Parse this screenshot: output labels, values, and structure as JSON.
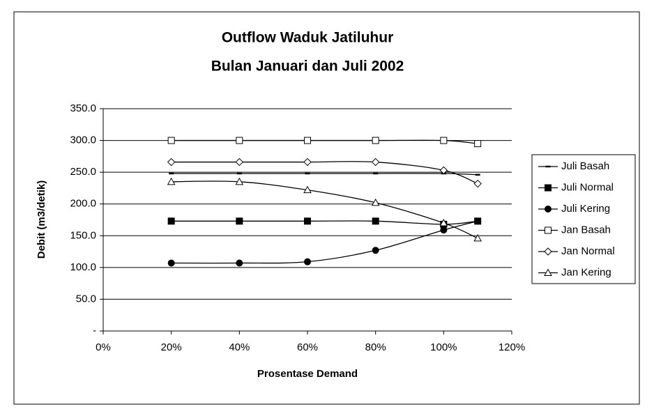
{
  "chart_data": {
    "type": "line",
    "title": "Outflow Waduk Jatiluhur",
    "subtitle": "Bulan Januari dan Juli 2002",
    "x_label": "Prosentase Demand",
    "y_label": "Debit (m3/detik)",
    "x": [
      20,
      40,
      60,
      80,
      100,
      110
    ],
    "xlim": [
      0,
      120
    ],
    "xticks": [
      {
        "value": 0,
        "label": "0%"
      },
      {
        "value": 20,
        "label": "20%"
      },
      {
        "value": 40,
        "label": "40%"
      },
      {
        "value": 60,
        "label": "60%"
      },
      {
        "value": 80,
        "label": "80%"
      },
      {
        "value": 100,
        "label": "100%"
      },
      {
        "value": 120,
        "label": "120%"
      }
    ],
    "ylim": [
      0,
      350
    ],
    "yticks": [
      {
        "value": 0,
        "label": "-"
      },
      {
        "value": 50,
        "label": "50.0"
      },
      {
        "value": 100,
        "label": "100.0"
      },
      {
        "value": 150,
        "label": "150.0"
      },
      {
        "value": 200,
        "label": "200.0"
      },
      {
        "value": 250,
        "label": "250.0"
      },
      {
        "value": 300,
        "label": "300.0"
      },
      {
        "value": 350,
        "label": "350.0"
      }
    ],
    "grid": true,
    "legend": "right",
    "series": [
      {
        "name": "Juli Basah",
        "color": "#000000",
        "marker": "dash",
        "values": [
          248,
          248,
          248,
          248,
          248,
          246
        ]
      },
      {
        "name": "Juli Normal",
        "color": "#000000",
        "marker": "square",
        "values": [
          173,
          173,
          173,
          173,
          168,
          173
        ]
      },
      {
        "name": "Juli Kering",
        "color": "#000000",
        "marker": "circle",
        "values": [
          107,
          107,
          109,
          127,
          159,
          173
        ]
      },
      {
        "name": "Jan Basah",
        "color": "#000000",
        "marker": "open-square",
        "values": [
          300,
          300,
          300,
          300,
          300,
          295
        ]
      },
      {
        "name": "Jan Normal",
        "color": "#000000",
        "marker": "open-diamond",
        "values": [
          266,
          266,
          266,
          266,
          253,
          232
        ]
      },
      {
        "name": "Jan Kering",
        "color": "#000000",
        "marker": "open-triangle",
        "values": [
          235,
          235,
          222,
          202,
          170,
          146
        ]
      }
    ]
  }
}
